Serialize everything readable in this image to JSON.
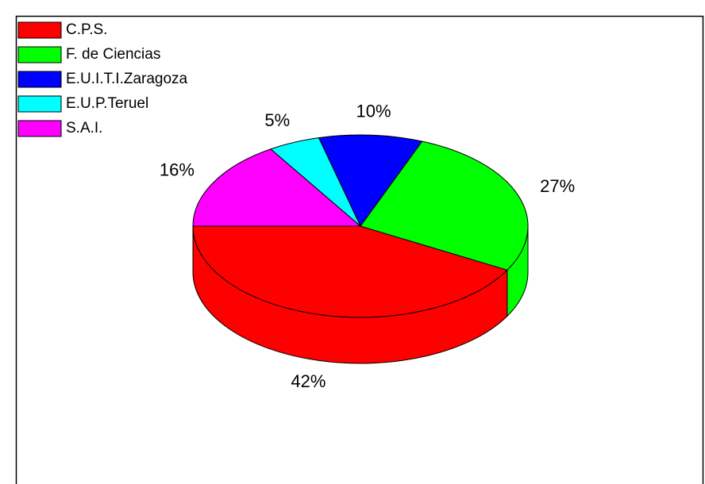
{
  "chart_data": {
    "type": "pie",
    "categories": [
      "C.P.S.",
      "F. de Ciencias",
      "E.U.I.T.I.Zaragoza",
      "E.U.P.Teruel",
      "S.A.I."
    ],
    "values": [
      42,
      27,
      10,
      5,
      16
    ],
    "value_labels": [
      "42%",
      "27%",
      "10%",
      "5%",
      "16%"
    ],
    "colors": [
      "#ff0000",
      "#00ff00",
      "#0000ff",
      "#00ffff",
      "#ff00ff"
    ],
    "legend": "top-left",
    "three_d": true
  }
}
